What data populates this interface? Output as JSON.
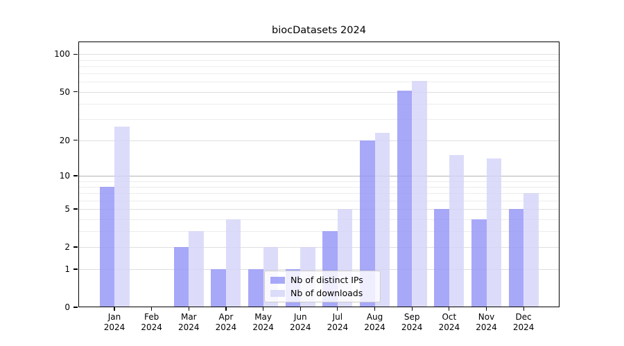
{
  "title": "biocDatasets 2024",
  "chart_data": {
    "type": "bar",
    "title": "biocDatasets 2024",
    "scale": "log1p",
    "ylim": [
      0,
      126
    ],
    "grid": true,
    "categories": [
      "Jan",
      "Feb",
      "Mar",
      "Apr",
      "May",
      "Jun",
      "Jul",
      "Aug",
      "Sep",
      "Oct",
      "Nov",
      "Dec"
    ],
    "category_year": "2024",
    "series": [
      {
        "name": "Nb of distinct IPs",
        "color": "#9292f8",
        "alpha": 0.8,
        "values": [
          8,
          0,
          2,
          1,
          1,
          1,
          3,
          20,
          51,
          5,
          4,
          5
        ]
      },
      {
        "name": "Nb of downloads",
        "color": "#d3d3f9",
        "alpha": 0.8,
        "values": [
          26,
          0,
          3,
          4,
          2,
          2,
          5,
          23,
          61,
          15,
          14,
          7
        ]
      }
    ],
    "yticks": [
      0,
      1,
      2,
      5,
      10,
      20,
      50,
      100
    ],
    "minor_gridlines": [
      3,
      4,
      6,
      7,
      8,
      9,
      30,
      40,
      60,
      70,
      80,
      90
    ],
    "emphasized_gridline": 10,
    "legend_position": "lower-center"
  }
}
